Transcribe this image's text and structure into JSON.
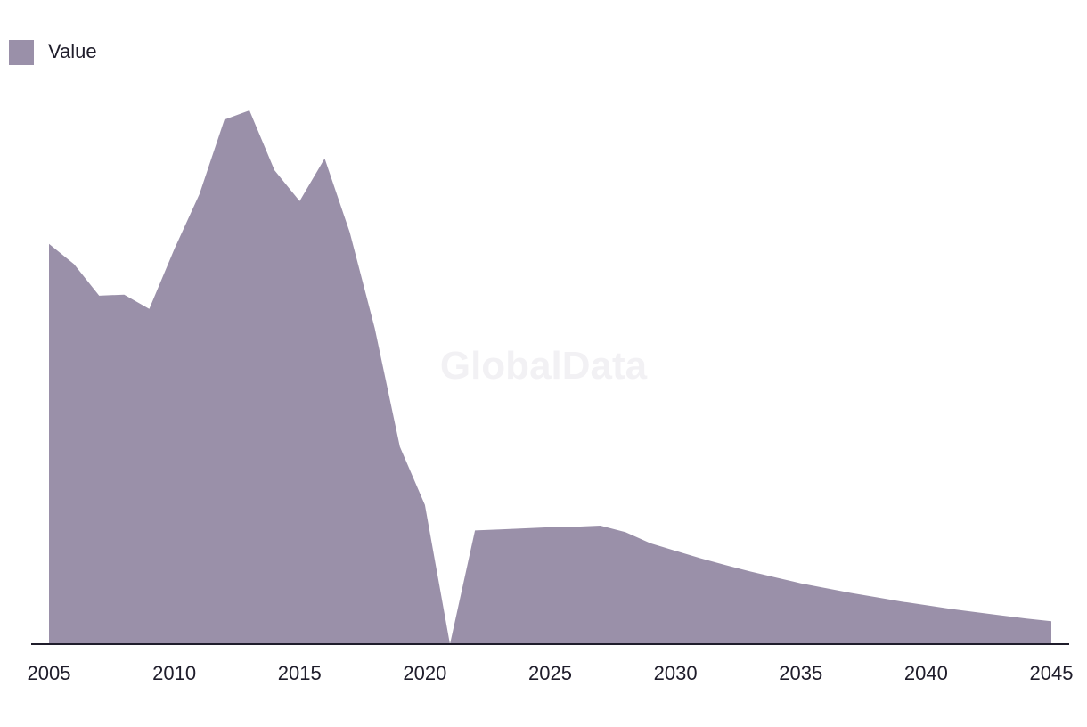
{
  "chart_data": {
    "type": "area",
    "x": [
      2005,
      2006,
      2007,
      2008,
      2009,
      2010,
      2011,
      2012,
      2013,
      2014,
      2015,
      2016,
      2017,
      2018,
      2019,
      2020,
      2021,
      2022,
      2023,
      2024,
      2025,
      2026,
      2027,
      2028,
      2029,
      2030,
      2031,
      2032,
      2033,
      2034,
      2035,
      2036,
      2037,
      2038,
      2039,
      2040,
      2041,
      2042,
      2043,
      2044,
      2045
    ],
    "series": [
      {
        "name": "Value",
        "color": "#9a90a9",
        "values": [
          75.0,
          71.2,
          65.3,
          65.5,
          62.8,
          74.0,
          84.3,
          98.3,
          100.0,
          88.8,
          83.0,
          91.0,
          77.2,
          59.2,
          37.0,
          26.1,
          0.0,
          21.3,
          21.5,
          21.7,
          21.9,
          22.0,
          22.2,
          21.0,
          18.9,
          17.5,
          16.1,
          14.8,
          13.6,
          12.5,
          11.4,
          10.5,
          9.6,
          8.8,
          8.0,
          7.3,
          6.6,
          6.0,
          5.4,
          4.8,
          4.3
        ]
      }
    ],
    "xticks": [
      2005,
      2010,
      2015,
      2020,
      2025,
      2030,
      2035,
      2040,
      2045
    ],
    "xlim": [
      2005,
      2045
    ],
    "ylim": [
      0,
      100
    ],
    "legend": {
      "position": "top-left"
    },
    "grid": false
  },
  "watermark": "GlobalData"
}
